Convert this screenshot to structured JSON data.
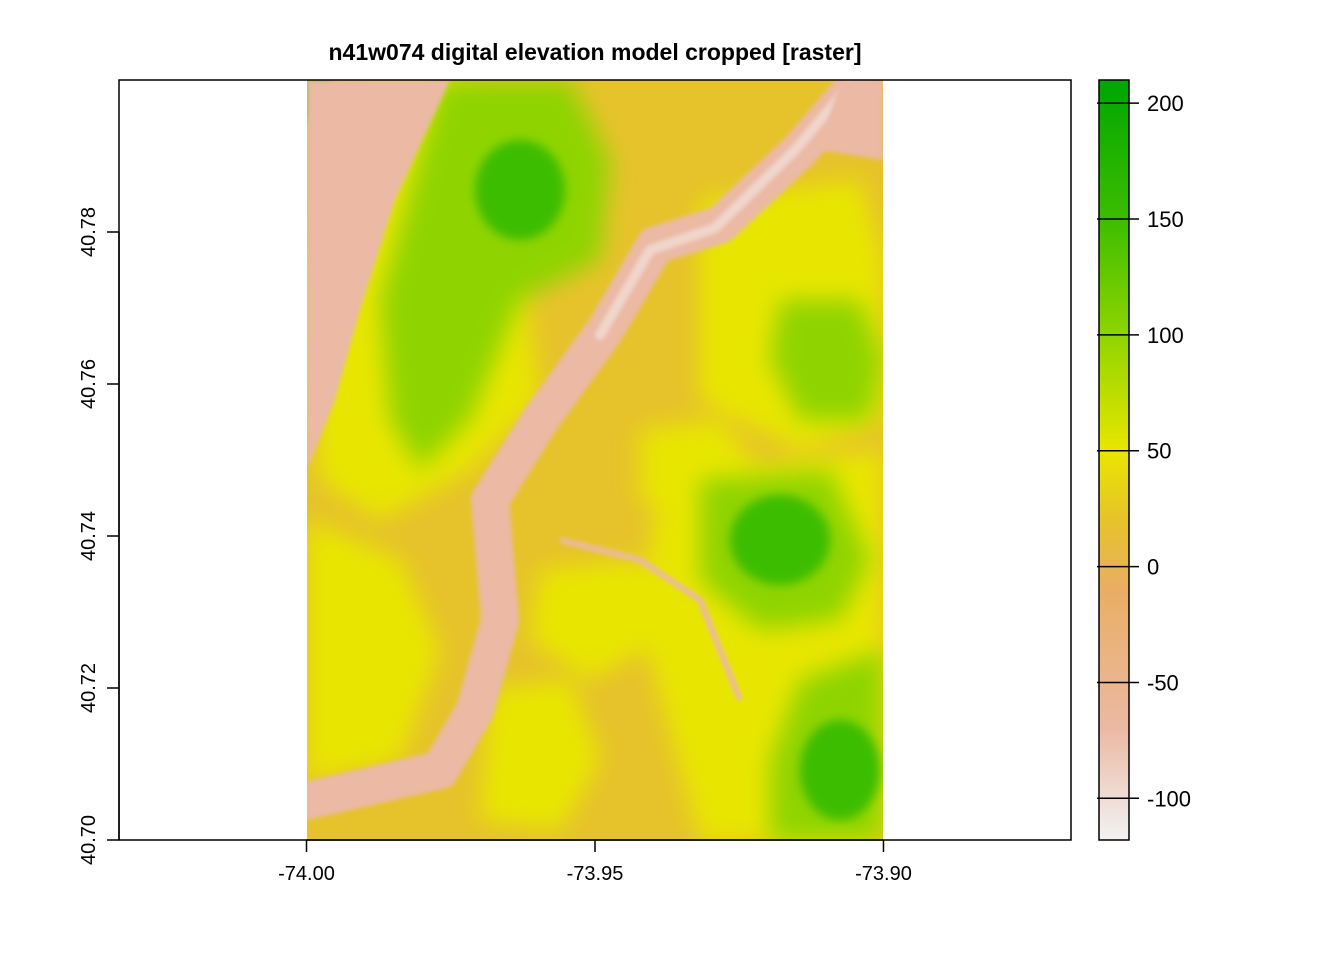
{
  "chart_data": {
    "type": "heatmap",
    "title": "n41w074 digital elevation model cropped [raster]",
    "xlabel": "",
    "ylabel": "",
    "xlim": [
      -74.0325,
      -73.8675
    ],
    "ylim": [
      40.7,
      40.8
    ],
    "raster_extent": {
      "x": [
        -74.0,
        -73.9
      ],
      "y": [
        40.7,
        40.8
      ]
    },
    "x_ticks": [
      {
        "value": -74.0,
        "label": "-74.00"
      },
      {
        "value": -73.95,
        "label": "-73.95"
      },
      {
        "value": -73.9,
        "label": "-73.90"
      }
    ],
    "y_ticks": [
      {
        "value": 40.7,
        "label": "40.70"
      },
      {
        "value": 40.72,
        "label": "40.72"
      },
      {
        "value": 40.74,
        "label": "40.74"
      },
      {
        "value": 40.76,
        "label": "40.76"
      },
      {
        "value": 40.78,
        "label": "40.78"
      }
    ],
    "legend": {
      "placement": "right",
      "range": [
        -118,
        210
      ],
      "ticks": [
        {
          "value": 200,
          "label": "200"
        },
        {
          "value": 150,
          "label": "150"
        },
        {
          "value": 100,
          "label": "100"
        },
        {
          "value": 50,
          "label": "50"
        },
        {
          "value": 0,
          "label": "0"
        },
        {
          "value": -50,
          "label": "-50"
        },
        {
          "value": -100,
          "label": "-100"
        }
      ],
      "color_stops": [
        {
          "value": -118,
          "color": "#f2f2f2"
        },
        {
          "value": -70,
          "color": "#ebb9a4"
        },
        {
          "value": -10,
          "color": "#e9ae63"
        },
        {
          "value": 20,
          "color": "#e6c32a"
        },
        {
          "value": 50,
          "color": "#e8e600"
        },
        {
          "value": 100,
          "color": "#8fd400"
        },
        {
          "value": 150,
          "color": "#3cbd00"
        },
        {
          "value": 210,
          "color": "#00a600"
        }
      ]
    },
    "colors": {
      "river": "#ebb9a4",
      "river_light": "#f0d6cc",
      "lowland": "#e6c32a",
      "plain": "#e8e600",
      "upland": "#8fd400",
      "high": "#3cbd00"
    }
  }
}
